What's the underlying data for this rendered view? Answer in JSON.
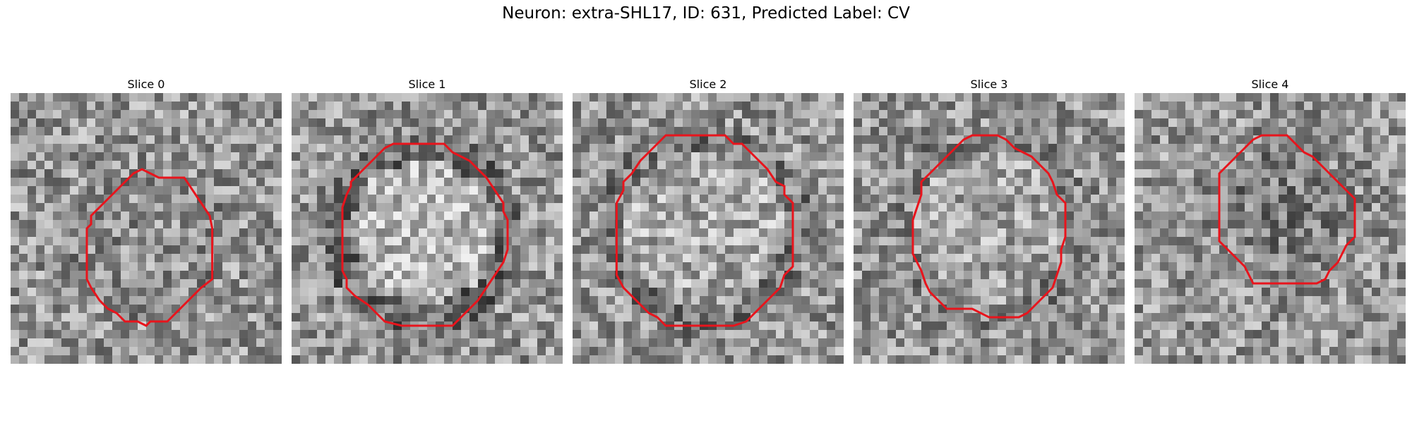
{
  "figure": {
    "title": "Neuron: extra-SHL17, ID: 631, Predicted Label: CV"
  },
  "outline_color": "#e8141c",
  "panels": [
    {
      "title": "Slice 0"
    },
    {
      "title": "Slice 1"
    },
    {
      "title": "Slice 2"
    },
    {
      "title": "Slice 3"
    },
    {
      "title": "Slice 4"
    }
  ]
}
